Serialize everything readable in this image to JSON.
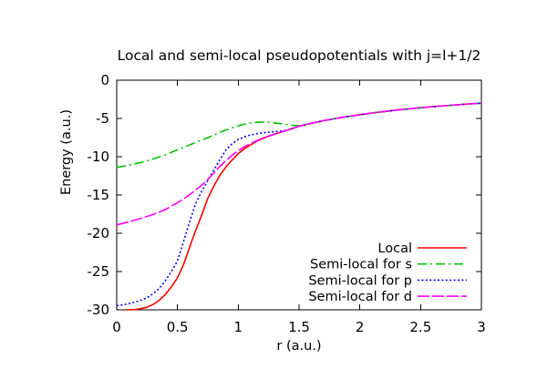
{
  "chart_data": {
    "type": "line",
    "title": "Local and semi-local pseudopotentials with j=l+1/2",
    "xlabel": "r (a.u.)",
    "ylabel": "Energy (a.u.)",
    "xlim": [
      0,
      3
    ],
    "ylim": [
      -30,
      0
    ],
    "grid": false,
    "legend_position": "inside-bottom-right",
    "xticks": [
      {
        "v": 0,
        "label": "0"
      },
      {
        "v": 0.5,
        "label": "0.5"
      },
      {
        "v": 1,
        "label": "1"
      },
      {
        "v": 1.5,
        "label": "1.5"
      },
      {
        "v": 2,
        "label": "2"
      },
      {
        "v": 2.5,
        "label": "2.5"
      },
      {
        "v": 3,
        "label": "3"
      }
    ],
    "yticks": [
      {
        "v": 0,
        "label": "0"
      },
      {
        "v": -5,
        "label": "-5"
      },
      {
        "v": -10,
        "label": "-10"
      },
      {
        "v": -15,
        "label": "-15"
      },
      {
        "v": -20,
        "label": "-20"
      },
      {
        "v": -25,
        "label": "-25"
      },
      {
        "v": -30,
        "label": "-30"
      }
    ],
    "series": [
      {
        "name": "Local",
        "color": "#ff0000",
        "dash": "solid",
        "points": [
          [
            0.08,
            -30
          ],
          [
            0.15,
            -29.97
          ],
          [
            0.2,
            -29.85
          ],
          [
            0.25,
            -29.65
          ],
          [
            0.3,
            -29.3
          ],
          [
            0.35,
            -28.75
          ],
          [
            0.4,
            -28.0
          ],
          [
            0.45,
            -27.0
          ],
          [
            0.5,
            -25.8
          ],
          [
            0.55,
            -24.1
          ],
          [
            0.6,
            -21.8
          ],
          [
            0.65,
            -19.6
          ],
          [
            0.7,
            -17.6
          ],
          [
            0.75,
            -15.4
          ],
          [
            0.8,
            -13.8
          ],
          [
            0.85,
            -12.4
          ],
          [
            0.9,
            -11.3
          ],
          [
            0.95,
            -10.4
          ],
          [
            1.0,
            -9.6
          ],
          [
            1.05,
            -8.95
          ],
          [
            1.1,
            -8.45
          ],
          [
            1.15,
            -8.0
          ],
          [
            1.2,
            -7.62
          ],
          [
            1.25,
            -7.32
          ],
          [
            1.3,
            -7.05
          ],
          [
            1.35,
            -6.8
          ],
          [
            1.4,
            -6.55
          ],
          [
            1.45,
            -6.28
          ],
          [
            1.5,
            -6.0
          ],
          [
            1.6,
            -5.63
          ],
          [
            1.7,
            -5.29
          ],
          [
            1.8,
            -5.0
          ],
          [
            1.9,
            -4.74
          ],
          [
            2.0,
            -4.5
          ],
          [
            2.1,
            -4.29
          ],
          [
            2.2,
            -4.09
          ],
          [
            2.3,
            -3.91
          ],
          [
            2.4,
            -3.75
          ],
          [
            2.5,
            -3.6
          ],
          [
            2.6,
            -3.46
          ],
          [
            2.7,
            -3.33
          ],
          [
            2.8,
            -3.21
          ],
          [
            2.9,
            -3.1
          ],
          [
            3.0,
            -3.0
          ]
        ]
      },
      {
        "name": "Semi-local for s",
        "color": "#00c400",
        "dash": "10 4 2 4",
        "points": [
          [
            0,
            -11.4
          ],
          [
            0.1,
            -11.1
          ],
          [
            0.2,
            -10.75
          ],
          [
            0.3,
            -10.3
          ],
          [
            0.4,
            -9.75
          ],
          [
            0.5,
            -9.1
          ],
          [
            0.6,
            -8.45
          ],
          [
            0.7,
            -7.8
          ],
          [
            0.75,
            -7.5
          ],
          [
            0.8,
            -7.15
          ],
          [
            0.85,
            -6.8
          ],
          [
            0.9,
            -6.5
          ],
          [
            0.95,
            -6.2
          ],
          [
            1.0,
            -5.95
          ],
          [
            1.05,
            -5.75
          ],
          [
            1.1,
            -5.6
          ],
          [
            1.15,
            -5.5
          ],
          [
            1.2,
            -5.47
          ],
          [
            1.25,
            -5.5
          ],
          [
            1.3,
            -5.58
          ],
          [
            1.35,
            -5.68
          ],
          [
            1.4,
            -5.8
          ],
          [
            1.45,
            -5.9
          ],
          [
            1.5,
            -5.95
          ],
          [
            1.55,
            -5.82
          ],
          [
            1.6,
            -5.64
          ],
          [
            1.7,
            -5.3
          ],
          [
            1.8,
            -5.01
          ],
          [
            1.9,
            -4.75
          ],
          [
            2.0,
            -4.51
          ],
          [
            2.2,
            -4.1
          ],
          [
            2.4,
            -3.76
          ],
          [
            2.6,
            -3.47
          ],
          [
            2.8,
            -3.22
          ],
          [
            3.0,
            -3.0
          ]
        ]
      },
      {
        "name": "Semi-local for p",
        "color": "#0000ff",
        "dash": "2 2.4",
        "points": [
          [
            0,
            -29.45
          ],
          [
            0.05,
            -29.35
          ],
          [
            0.1,
            -29.2
          ],
          [
            0.15,
            -29.0
          ],
          [
            0.2,
            -28.75
          ],
          [
            0.25,
            -28.4
          ],
          [
            0.3,
            -27.9
          ],
          [
            0.35,
            -27.2
          ],
          [
            0.4,
            -26.2
          ],
          [
            0.45,
            -25.0
          ],
          [
            0.5,
            -23.6
          ],
          [
            0.55,
            -21.1
          ],
          [
            0.6,
            -18.5
          ],
          [
            0.65,
            -16.1
          ],
          [
            0.7,
            -14.5
          ],
          [
            0.75,
            -13.1
          ],
          [
            0.8,
            -11.7
          ],
          [
            0.85,
            -10.35
          ],
          [
            0.9,
            -9.1
          ],
          [
            0.95,
            -8.3
          ],
          [
            1.0,
            -7.75
          ],
          [
            1.05,
            -7.4
          ],
          [
            1.1,
            -7.15
          ],
          [
            1.15,
            -7.0
          ],
          [
            1.2,
            -6.88
          ],
          [
            1.25,
            -6.8
          ],
          [
            1.3,
            -6.73
          ],
          [
            1.35,
            -6.66
          ],
          [
            1.4,
            -6.55
          ],
          [
            1.45,
            -6.3
          ],
          [
            1.5,
            -6.02
          ],
          [
            1.6,
            -5.64
          ],
          [
            1.7,
            -5.3
          ],
          [
            1.8,
            -5.01
          ],
          [
            1.9,
            -4.75
          ],
          [
            2.0,
            -4.51
          ],
          [
            2.2,
            -4.1
          ],
          [
            2.4,
            -3.76
          ],
          [
            2.6,
            -3.47
          ],
          [
            2.8,
            -3.22
          ],
          [
            3.0,
            -3.0
          ]
        ]
      },
      {
        "name": "Semi-local for d",
        "color": "#ff00ff",
        "dash": "13 3",
        "points": [
          [
            0,
            -18.9
          ],
          [
            0.1,
            -18.5
          ],
          [
            0.2,
            -18.05
          ],
          [
            0.3,
            -17.55
          ],
          [
            0.4,
            -16.9
          ],
          [
            0.5,
            -16.0
          ],
          [
            0.55,
            -15.5
          ],
          [
            0.6,
            -14.95
          ],
          [
            0.65,
            -14.35
          ],
          [
            0.7,
            -13.7
          ],
          [
            0.75,
            -12.95
          ],
          [
            0.8,
            -12.1
          ],
          [
            0.85,
            -11.25
          ],
          [
            0.9,
            -10.5
          ],
          [
            0.95,
            -9.8
          ],
          [
            1.0,
            -9.2
          ],
          [
            1.05,
            -8.7
          ],
          [
            1.1,
            -8.3
          ],
          [
            1.15,
            -7.92
          ],
          [
            1.2,
            -7.58
          ],
          [
            1.25,
            -7.3
          ],
          [
            1.3,
            -7.02
          ],
          [
            1.35,
            -6.78
          ],
          [
            1.4,
            -6.55
          ],
          [
            1.45,
            -6.28
          ],
          [
            1.5,
            -6.0
          ],
          [
            1.6,
            -5.63
          ],
          [
            1.7,
            -5.29
          ],
          [
            1.8,
            -5.0
          ],
          [
            1.9,
            -4.74
          ],
          [
            2.0,
            -4.5
          ],
          [
            2.1,
            -4.29
          ],
          [
            2.2,
            -4.09
          ],
          [
            2.3,
            -3.91
          ],
          [
            2.4,
            -3.75
          ],
          [
            2.5,
            -3.6
          ],
          [
            2.6,
            -3.46
          ],
          [
            2.7,
            -3.33
          ],
          [
            2.8,
            -3.21
          ],
          [
            2.9,
            -3.1
          ],
          [
            3.0,
            -3.0
          ]
        ]
      }
    ]
  }
}
